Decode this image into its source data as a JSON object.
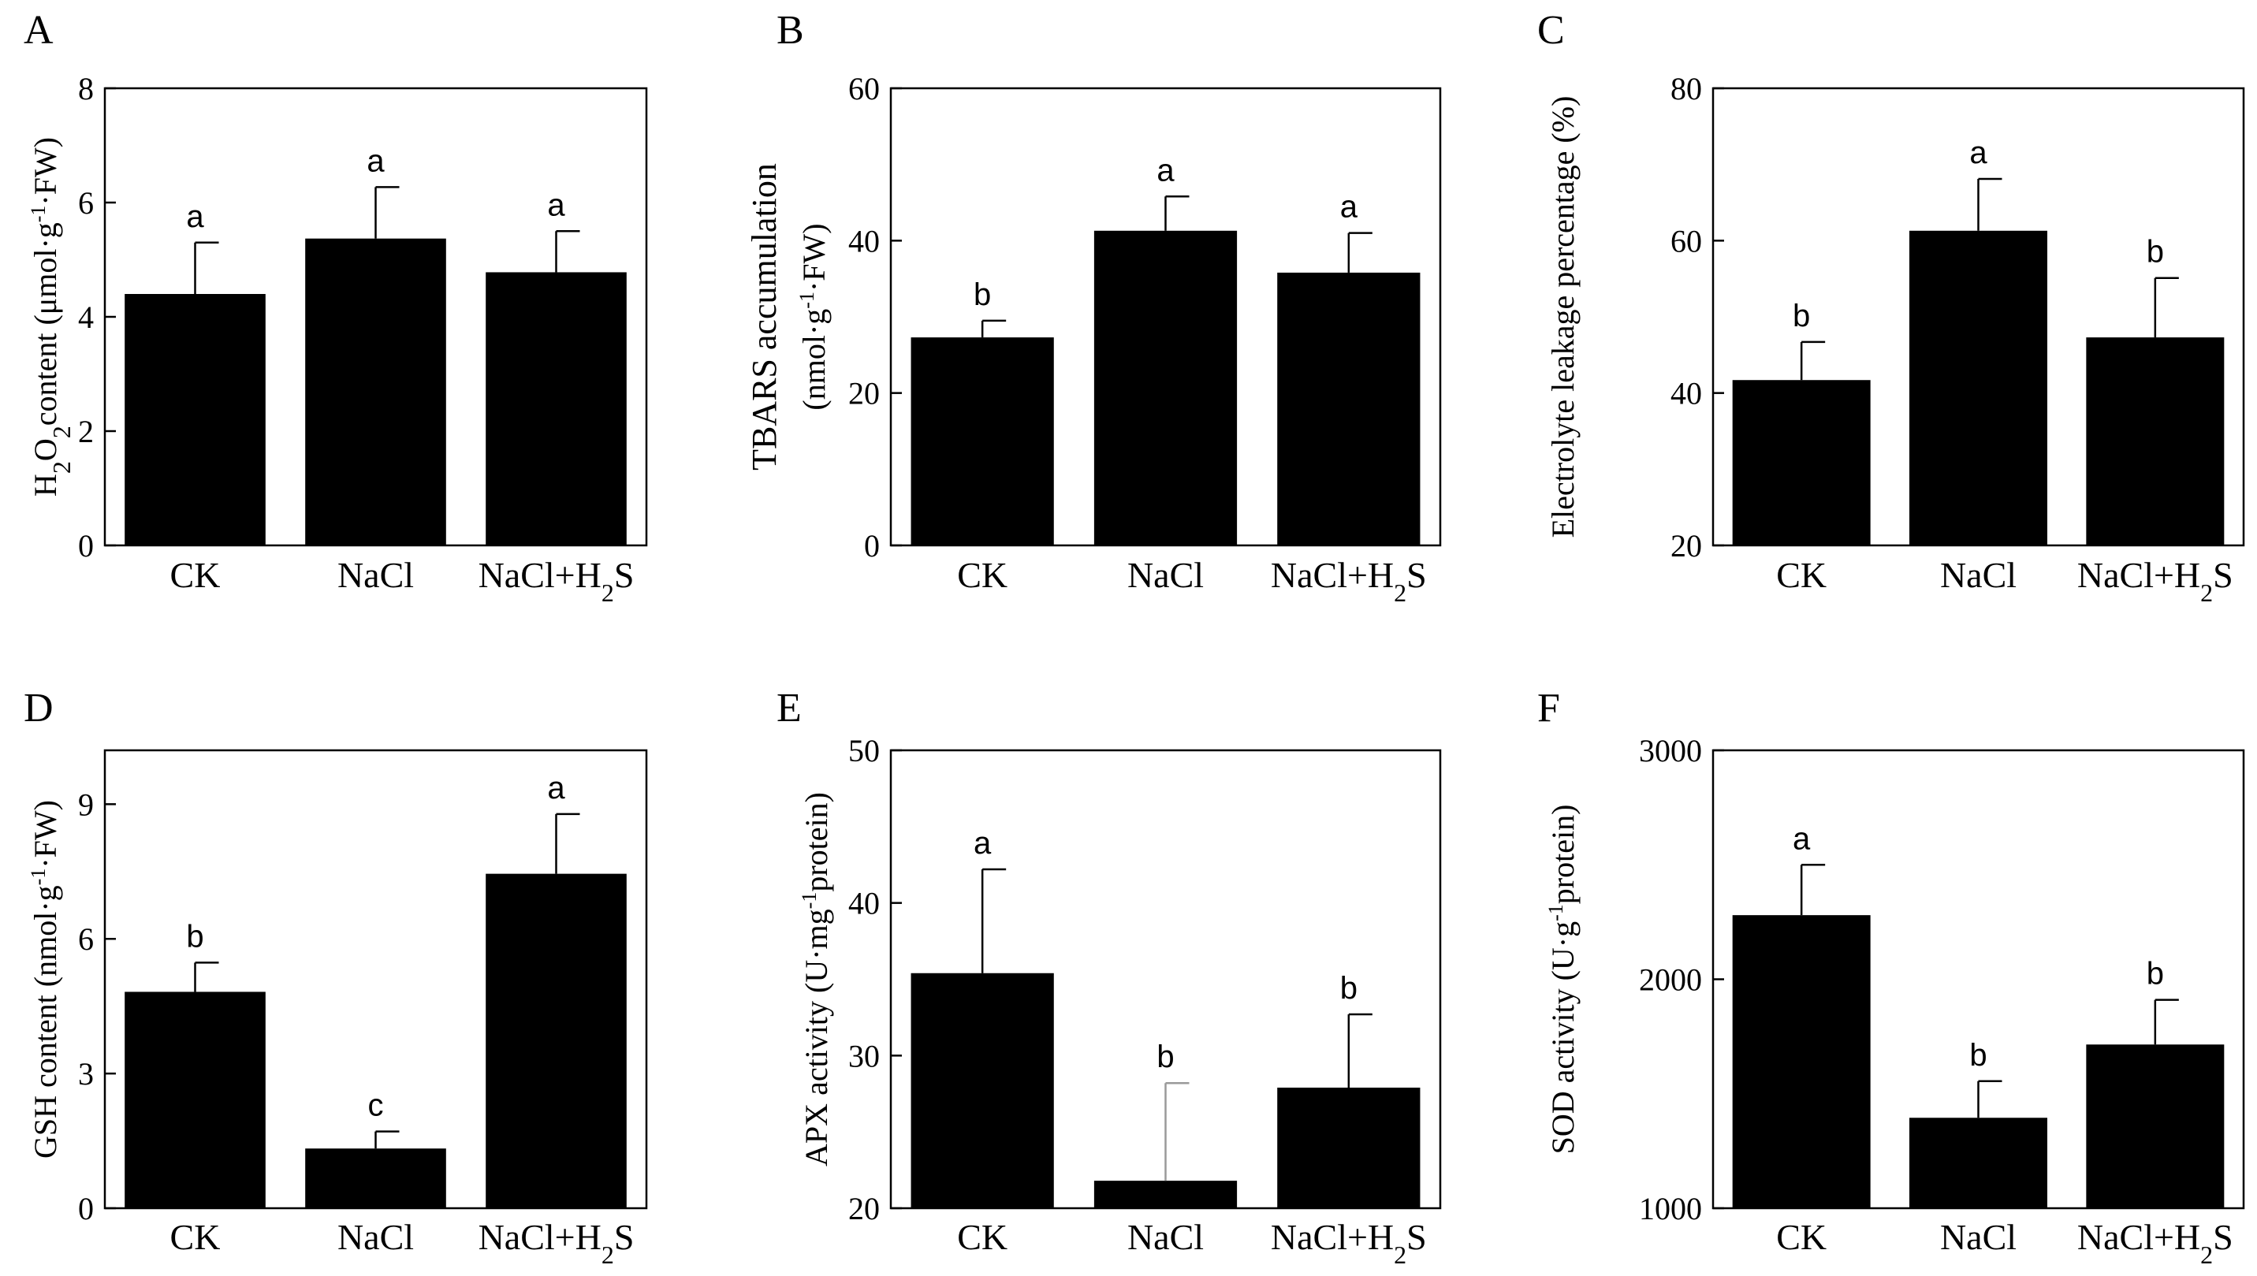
{
  "chart_data": [
    {
      "type": "bar",
      "panel_label": "A",
      "ylabel_parts": [
        {
          "text": "H",
          "sup": false,
          "sub": false
        },
        {
          "text": "2",
          "sup": false,
          "sub": true
        },
        {
          "text": "O",
          "sup": false,
          "sub": false
        },
        {
          "text": "2",
          "sup": false,
          "sub": true
        },
        {
          "text": "content (μmol·g",
          "sup": false,
          "sub": false
        },
        {
          "text": "-1",
          "sup": true,
          "sub": false
        },
        {
          "text": "·FW)",
          "sup": false,
          "sub": false
        }
      ],
      "ylim": [
        0,
        8
      ],
      "yticks": [
        "0",
        "2",
        "4",
        "6",
        "8"
      ],
      "categories": [
        "CK",
        "NaCl",
        "NaCl+H2S"
      ],
      "values": [
        4.4,
        5.37,
        4.78
      ],
      "errors": [
        0.9,
        0.9,
        0.72
      ],
      "letters": [
        "a",
        "a",
        "a"
      ]
    },
    {
      "type": "bar",
      "panel_label": "B",
      "ylabel_parts": [
        {
          "text": "TBARS accumulation",
          "sup": false,
          "sub": false
        }
      ],
      "ylabel2_parts": [
        {
          "text": "(nmol·g",
          "sup": false,
          "sub": false
        },
        {
          "text": "-1",
          "sup": true,
          "sub": false
        },
        {
          "text": "·FW)",
          "sup": false,
          "sub": false
        }
      ],
      "ylim": [
        0,
        60
      ],
      "yticks": [
        "0",
        "20",
        "40",
        "60"
      ],
      "categories": [
        "CK",
        "NaCl",
        "NaCl+H2S"
      ],
      "values": [
        27.3,
        41.3,
        35.8
      ],
      "errors": [
        2.2,
        4.5,
        5.2
      ],
      "letters": [
        "b",
        "a",
        "a"
      ]
    },
    {
      "type": "bar",
      "panel_label": "C",
      "ylabel_parts": [
        {
          "text": "Electrolyte leakage percentage (%)",
          "sup": false,
          "sub": false
        }
      ],
      "ylim": [
        20,
        80
      ],
      "yticks": [
        "20",
        "40",
        "60",
        "80"
      ],
      "categories": [
        "CK",
        "NaCl",
        "NaCl+H2S"
      ],
      "values": [
        41.7,
        61.3,
        47.3
      ],
      "errors": [
        5.0,
        6.8,
        7.8
      ],
      "letters": [
        "b",
        "a",
        "b"
      ]
    },
    {
      "type": "bar",
      "panel_label": "D",
      "ylabel_parts": [
        {
          "text": "GSH content (nmol·g",
          "sup": false,
          "sub": false
        },
        {
          "text": "-1",
          "sup": true,
          "sub": false
        },
        {
          "text": "·FW)",
          "sup": false,
          "sub": false
        }
      ],
      "ylim": [
        0,
        10.2
      ],
      "yticks": [
        "0",
        "3",
        "6",
        "9"
      ],
      "categories": [
        "CK",
        "NaCl",
        "NaCl+H2S"
      ],
      "values": [
        4.82,
        1.33,
        7.45
      ],
      "errors": [
        0.65,
        0.38,
        1.33
      ],
      "letters": [
        "b",
        "c",
        "a"
      ]
    },
    {
      "type": "bar",
      "panel_label": "E",
      "ylabel_parts": [
        {
          "text": "APX activity (U·mg",
          "sup": false,
          "sub": false
        },
        {
          "text": "-1",
          "sup": true,
          "sub": false
        },
        {
          "text": "protein)",
          "sup": false,
          "sub": false
        }
      ],
      "ylim": [
        20,
        50
      ],
      "yticks": [
        "20",
        "30",
        "40",
        "50"
      ],
      "categories": [
        "CK",
        "NaCl",
        "NaCl+H2S"
      ],
      "values": [
        35.4,
        21.8,
        27.9
      ],
      "errors": [
        6.8,
        6.4,
        4.8
      ],
      "letters": [
        "a",
        "b",
        "b"
      ]
    },
    {
      "type": "bar",
      "panel_label": "F",
      "ylabel_parts": [
        {
          "text": "SOD activity (U·g",
          "sup": false,
          "sub": false
        },
        {
          "text": "-1",
          "sup": true,
          "sub": false
        },
        {
          "text": "protein)",
          "sup": false,
          "sub": false
        }
      ],
      "ylim": [
        1000,
        3000
      ],
      "yticks": [
        "1000",
        "2000",
        "3000"
      ],
      "categories": [
        "CK",
        "NaCl",
        "NaCl+H2S"
      ],
      "values": [
        2280,
        1395,
        1715
      ],
      "errors": [
        220,
        160,
        195
      ],
      "letters": [
        "a",
        "b",
        "b"
      ]
    }
  ],
  "style": {
    "bar_color": "#000000",
    "axis_color": "#000000",
    "gray_error_color": "#9a9a9a"
  }
}
